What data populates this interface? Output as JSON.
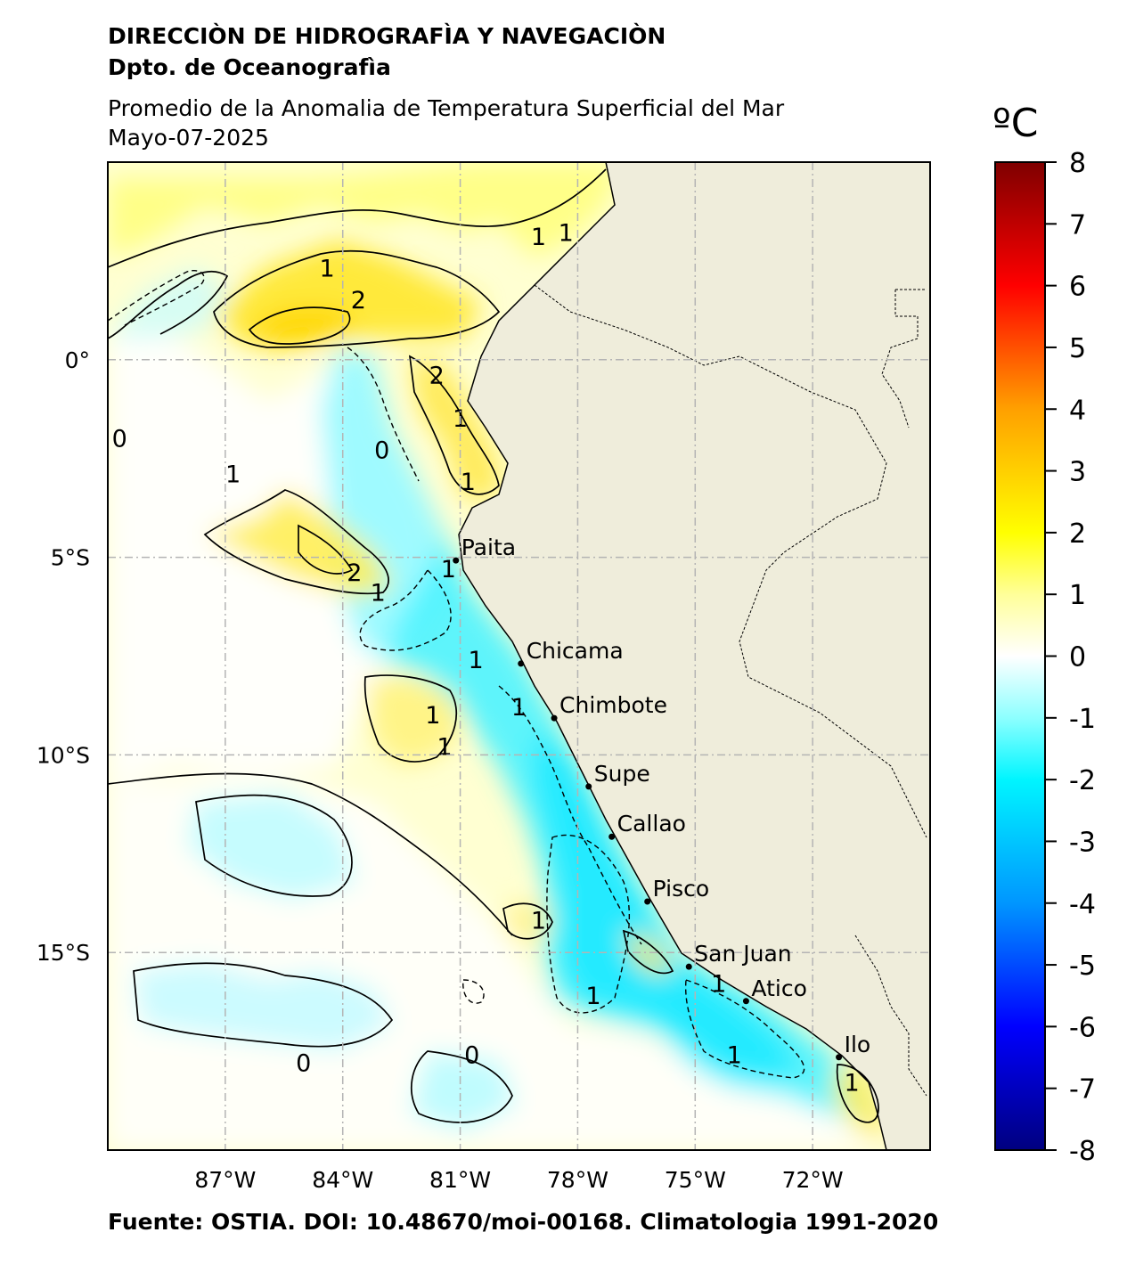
{
  "header": {
    "organization": "DIRECCIÒN DE HIDROGRAFÌA Y NAVEGACIÒN",
    "department": "Dpto. de Oceanografìa",
    "product": "Promedio de la Anomalia de Temperatura Superficial del Mar",
    "date": "Mayo-07-2025"
  },
  "footer": {
    "source": "Fuente: OSTIA. DOI: 10.48670/moi-00168. Climatologia 1991-2020"
  },
  "map": {
    "lon_range": [
      -90,
      -69
    ],
    "lat_range": [
      -20,
      5
    ],
    "lon_ticks": [
      {
        "value": -87,
        "label": "87°W"
      },
      {
        "value": -84,
        "label": "84°W"
      },
      {
        "value": -81,
        "label": "81°W"
      },
      {
        "value": -78,
        "label": "78°W"
      },
      {
        "value": -75,
        "label": "75°W"
      },
      {
        "value": -72,
        "label": "72°W"
      }
    ],
    "lat_ticks": [
      {
        "value": 0,
        "label": "0°"
      },
      {
        "value": -5,
        "label": "5°S"
      },
      {
        "value": -10,
        "label": "10°S"
      },
      {
        "value": -15,
        "label": "15°S"
      }
    ],
    "colors": {
      "land": "#efeddb",
      "ocean_base": "#ffffd2",
      "grid": "#b4b4b4"
    },
    "ports": [
      {
        "name": "Paita",
        "lon": -81.11,
        "lat": -5.08
      },
      {
        "name": "Chicama",
        "lon": -79.45,
        "lat": -7.69
      },
      {
        "name": "Chimbote",
        "lon": -78.6,
        "lat": -9.07
      },
      {
        "name": "Supe",
        "lon": -77.72,
        "lat": -10.8
      },
      {
        "name": "Callao",
        "lon": -77.13,
        "lat": -12.07
      },
      {
        "name": "Pisco",
        "lon": -76.22,
        "lat": -13.71
      },
      {
        "name": "San Juan",
        "lon": -75.16,
        "lat": -15.36
      },
      {
        "name": "Atico",
        "lon": -73.7,
        "lat": -16.23
      },
      {
        "name": "Ilo",
        "lon": -71.33,
        "lat": -17.65
      }
    ],
    "contour_labels": [
      {
        "text": "1",
        "lon": -84.4,
        "lat": 2.1
      },
      {
        "text": "2",
        "lon": -83.6,
        "lat": 1.3
      },
      {
        "text": "1",
        "lon": -79.0,
        "lat": 2.9
      },
      {
        "text": "1",
        "lon": -78.3,
        "lat": 3.0
      },
      {
        "text": "2",
        "lon": -81.6,
        "lat": -0.6
      },
      {
        "text": "1",
        "lon": -81.0,
        "lat": -1.7
      },
      {
        "text": "1",
        "lon": -80.8,
        "lat": -3.3
      },
      {
        "text": "1",
        "lon": -86.8,
        "lat": -3.1
      },
      {
        "text": "2",
        "lon": -83.7,
        "lat": -5.6
      },
      {
        "text": "1",
        "lon": -83.1,
        "lat": -6.1
      },
      {
        "text": "1",
        "lon": -81.3,
        "lat": -5.5
      },
      {
        "text": "1",
        "lon": -80.6,
        "lat": -7.8
      },
      {
        "text": "1",
        "lon": -79.5,
        "lat": -9.0
      },
      {
        "text": "1",
        "lon": -81.7,
        "lat": -9.2
      },
      {
        "text": "1",
        "lon": -81.4,
        "lat": -10.0
      },
      {
        "text": "1",
        "lon": -79.0,
        "lat": -14.4
      },
      {
        "text": "1",
        "lon": -77.6,
        "lat": -16.3
      },
      {
        "text": "1",
        "lon": -74.4,
        "lat": -16.0
      },
      {
        "text": "1",
        "lon": -74.0,
        "lat": -17.8
      },
      {
        "text": "1",
        "lon": -71.0,
        "lat": -18.5
      },
      {
        "text": "0",
        "lon": -89.7,
        "lat": -2.2
      },
      {
        "text": "0",
        "lon": -83.0,
        "lat": -2.5
      },
      {
        "text": "0",
        "lon": -85.0,
        "lat": -18.0
      },
      {
        "text": "0",
        "lon": -80.7,
        "lat": -17.8
      }
    ]
  },
  "colorbar": {
    "unit": "ºC",
    "min": -8,
    "max": 8,
    "ticks": [
      "8",
      "7",
      "6",
      "5",
      "4",
      "3",
      "2",
      "1",
      "0",
      "-1",
      "-2",
      "-3",
      "-4",
      "-5",
      "-6",
      "-7",
      "-8"
    ],
    "stops": [
      {
        "value": -8,
        "color": "#00007f"
      },
      {
        "value": -6,
        "color": "#0000ff"
      },
      {
        "value": -4,
        "color": "#0096ff"
      },
      {
        "value": -2,
        "color": "#00f5ff"
      },
      {
        "value": -1,
        "color": "#8dffff"
      },
      {
        "value": 0,
        "color": "#ffffff"
      },
      {
        "value": 1,
        "color": "#ffff99"
      },
      {
        "value": 2,
        "color": "#ffff00"
      },
      {
        "value": 4,
        "color": "#ffa000"
      },
      {
        "value": 6,
        "color": "#ff0000"
      },
      {
        "value": 8,
        "color": "#7f0000"
      }
    ]
  }
}
